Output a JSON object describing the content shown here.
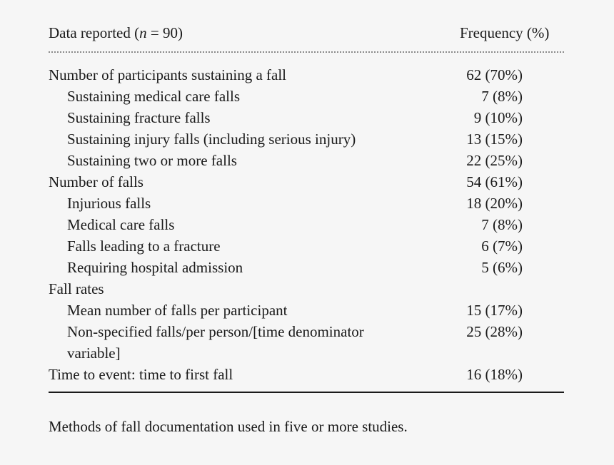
{
  "header": {
    "left_prefix": "Data reported (",
    "left_var": "n",
    "left_suffix": " = 90)",
    "right": "Frequency (%)"
  },
  "rows": [
    {
      "label": "Number of participants sustaining a fall",
      "value": "62 (70%)",
      "indent": false
    },
    {
      "label": "Sustaining medical care falls",
      "value": "7 (8%)",
      "indent": true
    },
    {
      "label": "Sustaining fracture falls",
      "value": "9 (10%)",
      "indent": true
    },
    {
      "label": "Sustaining injury falls (including serious injury)",
      "value": "13 (15%)",
      "indent": true
    },
    {
      "label": "Sustaining two or more falls",
      "value": "22 (25%)",
      "indent": true
    },
    {
      "label": "Number of falls",
      "value": "54 (61%)",
      "indent": false
    },
    {
      "label": "Injurious falls",
      "value": "18 (20%)",
      "indent": true
    },
    {
      "label": "Medical care falls",
      "value": "7 (8%)",
      "indent": true
    },
    {
      "label": "Falls leading to a fracture",
      "value": "6 (7%)",
      "indent": true
    },
    {
      "label": "Requiring hospital admission",
      "value": "5 (6%)",
      "indent": true
    },
    {
      "label": "Fall rates",
      "value": "",
      "indent": false
    },
    {
      "label": "Mean number of falls per participant",
      "value": "15 (17%)",
      "indent": true
    },
    {
      "label": "Non-specified falls/per person/[time denominator variable]",
      "value": "25 (28%)",
      "indent": true
    },
    {
      "label": "Time to event: time to first fall",
      "value": "16 (18%)",
      "indent": false
    }
  ],
  "caption": "Methods of fall documentation used in five or more studies."
}
